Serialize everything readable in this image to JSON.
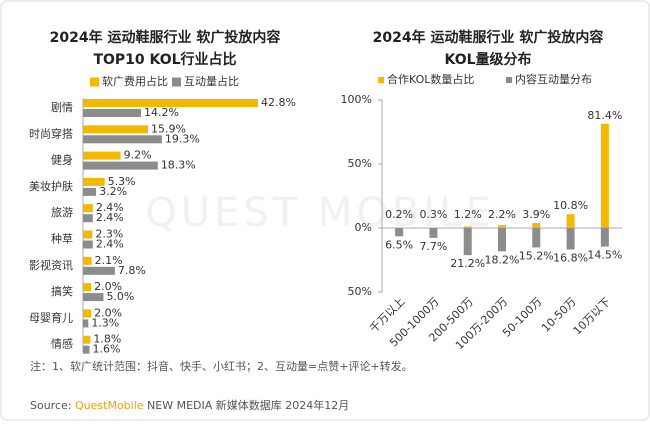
{
  "chart_data": [
    {
      "type": "hbar",
      "title": "2024年 运动鞋服行业 软广投放内容",
      "subtitle": "TOP10 KOL行业占比",
      "categories": [
        "剧情",
        "时尚穿搭",
        "健身",
        "美妆护肤",
        "旅游",
        "种草",
        "影视资讯",
        "搞笑",
        "母婴育儿",
        "情感"
      ],
      "series": [
        {
          "name": "软广费用占比",
          "color": "#F5B800",
          "values": [
            42.8,
            15.9,
            9.2,
            5.3,
            2.4,
            2.3,
            2.1,
            2.0,
            2.0,
            1.8
          ],
          "value_labels": [
            "42.8%",
            "15.9%",
            "9.2%",
            "5.3%",
            "2.4%",
            "2.3%",
            "2.1%",
            "2.0%",
            "2.0%",
            "1.8%"
          ]
        },
        {
          "name": "互动量占比",
          "color": "#8C8C8C",
          "values": [
            14.2,
            19.3,
            18.3,
            3.2,
            2.4,
            2.4,
            7.8,
            5.0,
            1.3,
            1.6
          ],
          "value_labels": [
            "14.2%",
            "19.3%",
            "18.3%",
            "3.2%",
            "2.4%",
            "2.4%",
            "7.8%",
            "5.0%",
            "1.3%",
            "1.6%"
          ]
        }
      ]
    },
    {
      "type": "bar",
      "title": "2024年 运动鞋服行业 软广投放内容",
      "subtitle": "KOL量级分布",
      "categories": [
        "千万以上",
        "500-1000万",
        "200-500万",
        "100万-200万",
        "50-100万",
        "10-50万",
        "10万以下"
      ],
      "series": [
        {
          "name": "合作KOL数量占比",
          "color": "#F5B800",
          "values": [
            0.2,
            0.3,
            1.2,
            2.2,
            3.9,
            10.8,
            81.4
          ],
          "value_labels": [
            "0.2%",
            "0.3%",
            "1.2%",
            "2.2%",
            "3.9%",
            "10.8%",
            "81.4%"
          ]
        },
        {
          "name": "内容互动量分布",
          "color": "#8C8C8C",
          "values": [
            -6.5,
            -7.7,
            -21.2,
            -18.2,
            -15.2,
            -16.8,
            -14.5
          ],
          "value_labels": [
            "6.5%",
            "7.7%",
            "21.2%",
            "18.2%",
            "15.2%",
            "16.8%",
            "14.5%"
          ]
        }
      ],
      "ylim": [
        -50,
        100
      ],
      "yticks": [
        {
          "value": 100,
          "label": "100%"
        },
        {
          "value": 50,
          "label": "50%"
        },
        {
          "value": 0,
          "label": "0%"
        },
        {
          "value": -50,
          "label": "50%"
        }
      ]
    }
  ],
  "note": "注：1、软广统计范围：抖音、快手、小红书；2、互动量=点赞+评论+转发。",
  "source": {
    "prefix": "Source:",
    "brand": "QuestMobile",
    "text": "NEW MEDIA 新媒体数据库 2024年12月"
  },
  "watermark": "QUEST MOBILE"
}
